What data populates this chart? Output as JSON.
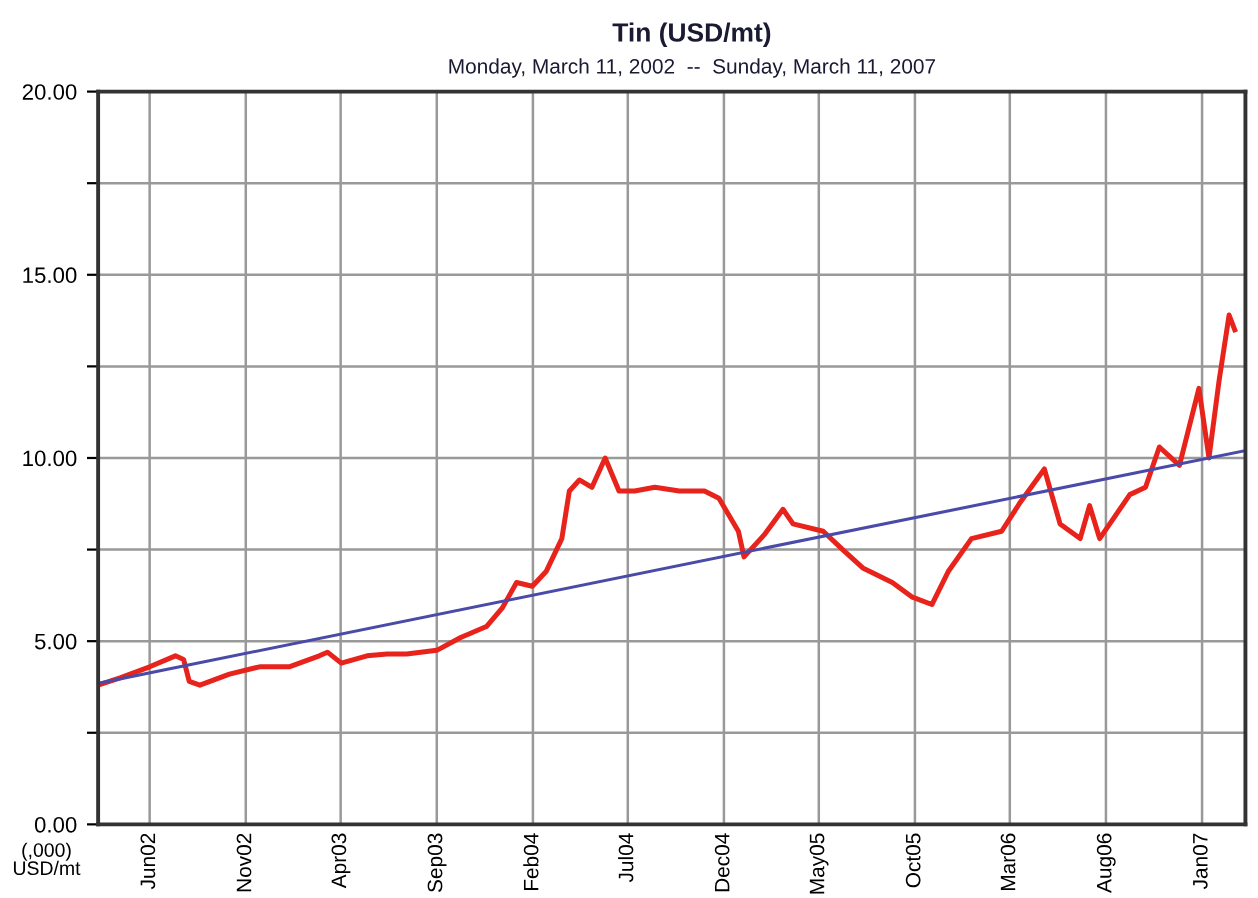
{
  "chart_data": {
    "type": "line",
    "title": "Tin (USD/mt)",
    "subtitle": "Monday, March 11, 2002  --  Sunday, March 11, 2007",
    "ylabel": "(,000)\nUSD/mt",
    "xlim": [
      "2002-03-11",
      "2007-03-11"
    ],
    "xticks": [
      {
        "value": "2002-06-01",
        "label": "Jun02"
      },
      {
        "value": "2002-11-01",
        "label": "Nov02"
      },
      {
        "value": "2003-04-01",
        "label": "Apr03"
      },
      {
        "value": "2003-09-01",
        "label": "Sep03"
      },
      {
        "value": "2004-02-01",
        "label": "Feb04"
      },
      {
        "value": "2004-07-01",
        "label": "Jul04"
      },
      {
        "value": "2004-12-01",
        "label": "Dec04"
      },
      {
        "value": "2005-05-01",
        "label": "May05"
      },
      {
        "value": "2005-10-01",
        "label": "Oct05"
      },
      {
        "value": "2006-03-01",
        "label": "Mar06"
      },
      {
        "value": "2006-08-01",
        "label": "Aug06"
      },
      {
        "value": "2007-01-01",
        "label": "Jan07"
      }
    ],
    "ylim": [
      0,
      20
    ],
    "yticks": [
      {
        "value": 0,
        "label": "0.00"
      },
      {
        "value": 2.5,
        "label": null
      },
      {
        "value": 5,
        "label": "5.00"
      },
      {
        "value": 7.5,
        "label": null
      },
      {
        "value": 10,
        "label": "10.00"
      },
      {
        "value": 12.5,
        "label": null
      },
      {
        "value": 15,
        "label": "15.00"
      },
      {
        "value": 17.5,
        "label": null
      },
      {
        "value": 20,
        "label": "20.00"
      }
    ],
    "grid": true,
    "marker": "none",
    "line_style": "solid",
    "series": [
      {
        "color": "#e8231c",
        "x": [
          "2002-03-11",
          "2002-04-15",
          "2002-06-01",
          "2002-07-12",
          "2002-07-25",
          "2002-08-03",
          "2002-08-20",
          "2002-10-06",
          "2002-11-23",
          "2003-01-09",
          "2003-02-26",
          "2003-03-11",
          "2003-04-02",
          "2003-05-13",
          "2003-06-14",
          "2003-07-15",
          "2003-09-01",
          "2003-10-09",
          "2003-11-19",
          "2003-12-14",
          "2004-01-06",
          "2004-01-31",
          "2004-02-22",
          "2004-03-18",
          "2004-03-30",
          "2004-04-15",
          "2004-05-05",
          "2004-05-26",
          "2004-06-17",
          "2004-07-12",
          "2004-08-13",
          "2004-09-21",
          "2004-10-31",
          "2004-11-23",
          "2004-12-24",
          "2005-01-02",
          "2005-02-03",
          "2005-03-05",
          "2005-03-21",
          "2005-05-08",
          "2005-06-08",
          "2005-07-10",
          "2005-08-26",
          "2005-09-27",
          "2005-10-28",
          "2005-11-23",
          "2005-12-30",
          "2006-02-16",
          "2006-03-18",
          "2006-04-25",
          "2006-05-20",
          "2006-06-21",
          "2006-07-06",
          "2006-07-22",
          "2006-09-08",
          "2006-10-03",
          "2006-10-25",
          "2006-11-26",
          "2006-12-27",
          "2007-01-12",
          "2007-01-28",
          "2007-02-13",
          "2007-02-22"
        ],
        "values": [
          3.8,
          4.0,
          4.3,
          4.6,
          4.5,
          3.9,
          3.8,
          4.1,
          4.3,
          4.3,
          4.6,
          4.7,
          4.4,
          4.6,
          4.65,
          4.65,
          4.75,
          5.1,
          5.4,
          5.9,
          6.6,
          6.5,
          6.9,
          7.8,
          9.1,
          9.4,
          9.2,
          10.0,
          9.1,
          9.1,
          9.2,
          9.1,
          9.1,
          8.9,
          8.0,
          7.3,
          7.9,
          8.6,
          8.2,
          8.0,
          7.5,
          7.0,
          6.6,
          6.2,
          6.0,
          6.9,
          7.8,
          8.0,
          8.8,
          9.7,
          8.2,
          7.8,
          8.7,
          7.8,
          9.0,
          9.2,
          10.3,
          9.8,
          11.9,
          10.0,
          12.1,
          13.9,
          13.5
        ]
      },
      {
        "color": "#4a4aa8",
        "x": [
          "2002-03-11",
          "2007-03-11"
        ],
        "values": [
          3.85,
          10.2
        ]
      }
    ]
  }
}
